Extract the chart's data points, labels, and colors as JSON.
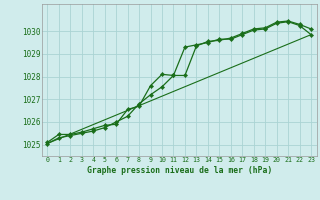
{
  "bg_color": "#d0ecec",
  "grid_color": "#aad4d4",
  "line_color": "#1a6e1a",
  "marker_color": "#1a6e1a",
  "title": "Graphe pression niveau de la mer (hPa)",
  "title_color": "#1a6e1a",
  "xlim": [
    -0.5,
    23.5
  ],
  "ylim": [
    1024.5,
    1031.2
  ],
  "yticks": [
    1025,
    1026,
    1027,
    1028,
    1029,
    1030
  ],
  "xticks": [
    0,
    1,
    2,
    3,
    4,
    5,
    6,
    7,
    8,
    9,
    10,
    11,
    12,
    13,
    14,
    15,
    16,
    17,
    18,
    19,
    20,
    21,
    22,
    23
  ],
  "series1_x": [
    0,
    1,
    2,
    3,
    4,
    5,
    6,
    7,
    8,
    9,
    10,
    11,
    12,
    13,
    14,
    15,
    16,
    17,
    18,
    19,
    20,
    21,
    22,
    23
  ],
  "series1_y": [
    1025.05,
    1025.3,
    1025.4,
    1025.5,
    1025.6,
    1025.75,
    1026.0,
    1026.25,
    1026.8,
    1027.2,
    1027.55,
    1028.05,
    1029.3,
    1029.4,
    1029.5,
    1029.65,
    1029.65,
    1029.85,
    1030.05,
    1030.1,
    1030.35,
    1030.42,
    1030.25,
    1029.85
  ],
  "series2_x": [
    0,
    1,
    2,
    3,
    4,
    5,
    6,
    7,
    8,
    9,
    10,
    11,
    12,
    13,
    14,
    15,
    16,
    17,
    18,
    19,
    20,
    21,
    22,
    23
  ],
  "series2_y": [
    1025.1,
    1025.45,
    1025.45,
    1025.55,
    1025.7,
    1025.85,
    1025.9,
    1026.55,
    1026.7,
    1027.6,
    1028.1,
    1028.05,
    1028.05,
    1029.35,
    1029.55,
    1029.6,
    1029.7,
    1029.9,
    1030.1,
    1030.15,
    1030.4,
    1030.45,
    1030.3,
    1030.1
  ],
  "series3_x": [
    0,
    23
  ],
  "series3_y": [
    1025.05,
    1029.85
  ]
}
